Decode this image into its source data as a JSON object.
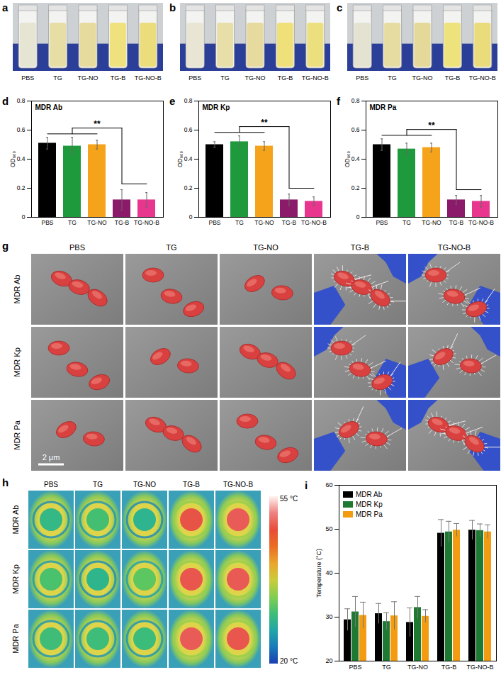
{
  "photos": [
    {
      "panel": "a",
      "labels": [
        "PBS",
        "TG",
        "TG-NO",
        "TG-B",
        "TG-NO-B"
      ],
      "colors": [
        "#e6e4d2",
        "#e7dea6",
        "#e6da9c",
        "#efe27e",
        "#ebdc7c"
      ]
    },
    {
      "panel": "b",
      "labels": [
        "PBS",
        "TG",
        "TG-NO",
        "TG-B",
        "TG-NO-B"
      ],
      "colors": [
        "#e8e5d4",
        "#e8dfa8",
        "#e7da9e",
        "#f0e07a",
        "#ece07e"
      ]
    },
    {
      "panel": "c",
      "labels": [
        "PBS",
        "TG",
        "TG-NO",
        "TG-B",
        "TG-NO-B"
      ],
      "colors": [
        "#e4e2d0",
        "#e6dca2",
        "#e5d99a",
        "#eee27c",
        "#eadc7a"
      ]
    }
  ],
  "chart_data": [
    {
      "panel": "d",
      "type": "bar",
      "title": "MDR Ab",
      "categories": [
        "PBS",
        "TG",
        "TG-NO",
        "TG-B",
        "TG-NO-B"
      ],
      "values": [
        0.51,
        0.49,
        0.5,
        0.12,
        0.12
      ],
      "errors": [
        0.04,
        0.06,
        0.03,
        0.07,
        0.05
      ],
      "colors": [
        "#000000",
        "#1e9a3c",
        "#f5a31a",
        "#8c1a6a",
        "#e8368f"
      ],
      "y_label": "OD₆₀₀",
      "ylim": [
        0,
        0.8
      ],
      "yticks": [
        0,
        0.2,
        0.4,
        0.6,
        0.8
      ],
      "annotations": [
        {
          "text": "**",
          "groups": [
            [
              "PBS",
              "TG",
              "TG-NO"
            ],
            [
              "TG-B",
              "TG-NO-B"
            ]
          ]
        }
      ]
    },
    {
      "panel": "e",
      "type": "bar",
      "title": "MDR Kp",
      "categories": [
        "PBS",
        "TG",
        "TG-NO",
        "TG-B",
        "TG-NO-B"
      ],
      "values": [
        0.5,
        0.52,
        0.49,
        0.12,
        0.11
      ],
      "errors": [
        0.02,
        0.04,
        0.03,
        0.04,
        0.03
      ],
      "colors": [
        "#000000",
        "#1e9a3c",
        "#f5a31a",
        "#8c1a6a",
        "#e8368f"
      ],
      "y_label": "OD₆₀₀",
      "ylim": [
        0,
        0.8
      ],
      "yticks": [
        0,
        0.2,
        0.4,
        0.6,
        0.8
      ],
      "annotations": [
        {
          "text": "**",
          "groups": [
            [
              "PBS",
              "TG",
              "TG-NO"
            ],
            [
              "TG-B",
              "TG-NO-B"
            ]
          ]
        }
      ]
    },
    {
      "panel": "f",
      "type": "bar",
      "title": "MDR Pa",
      "categories": [
        "PBS",
        "TG",
        "TG-NO",
        "TG-B",
        "TG-NO-B"
      ],
      "values": [
        0.5,
        0.47,
        0.48,
        0.12,
        0.11
      ],
      "errors": [
        0.04,
        0.04,
        0.03,
        0.03,
        0.04
      ],
      "colors": [
        "#000000",
        "#1e9a3c",
        "#f5a31a",
        "#8c1a6a",
        "#e8368f"
      ],
      "y_label": "OD₆₀₀",
      "ylim": [
        0,
        0.8
      ],
      "yticks": [
        0,
        0.2,
        0.4,
        0.6,
        0.8
      ],
      "annotations": [
        {
          "text": "**",
          "groups": [
            [
              "PBS",
              "TG",
              "TG-NO"
            ],
            [
              "TG-B",
              "TG-NO-B"
            ]
          ]
        }
      ]
    },
    {
      "panel": "i",
      "type": "bar",
      "categories": [
        "PBS",
        "TG",
        "TG-NO",
        "TG-B",
        "TG-NO-B"
      ],
      "series": [
        {
          "name": "MDR Ab",
          "color": "#000000",
          "values": [
            29.4,
            30.8,
            28.8,
            49.1,
            49.8
          ],
          "errors": [
            2.5,
            2.3,
            3.3,
            3.1,
            2.2
          ]
        },
        {
          "name": "MDR Kp",
          "color": "#1e7a32",
          "values": [
            31.2,
            29.0,
            32.2,
            49.4,
            49.7
          ],
          "errors": [
            3.5,
            2.0,
            2.5,
            2.4,
            1.5
          ]
        },
        {
          "name": "MDR Pa",
          "color": "#f39c12",
          "values": [
            30.4,
            30.3,
            30.2,
            49.8,
            49.4
          ],
          "errors": [
            3.0,
            3.2,
            1.5,
            1.5,
            1.6
          ]
        }
      ],
      "y_label": "Temperature (°C)",
      "ylim": [
        20,
        60
      ],
      "yticks": [
        20,
        30,
        40,
        50,
        60
      ],
      "legend": "top-left"
    }
  ],
  "sem": {
    "panel": "g",
    "columns": [
      "PBS",
      "TG",
      "TG-NO",
      "TG-B",
      "TG-NO-B"
    ],
    "rows": [
      "MDR Ab",
      "MDR Kp",
      "MDR Pa"
    ],
    "scale_bar": "2 μm"
  },
  "thermal": {
    "panel": "h",
    "columns": [
      "PBS",
      "TG",
      "TG-NO",
      "TG-B",
      "TG-NO-B"
    ],
    "rows": [
      "MDR Ab",
      "MDR Kp",
      "MDR Pa"
    ],
    "cells": [
      [
        29.4,
        30.8,
        28.8,
        49.1,
        49.8
      ],
      [
        31.2,
        29.0,
        32.2,
        49.4,
        49.7
      ],
      [
        30.4,
        30.3,
        30.2,
        49.8,
        49.4
      ]
    ],
    "colorbar": {
      "range": [
        20,
        55
      ],
      "ticks": [
        {
          "value": 55,
          "label": "55 °C"
        },
        {
          "value": 20,
          "label": "20 °C"
        }
      ]
    }
  }
}
